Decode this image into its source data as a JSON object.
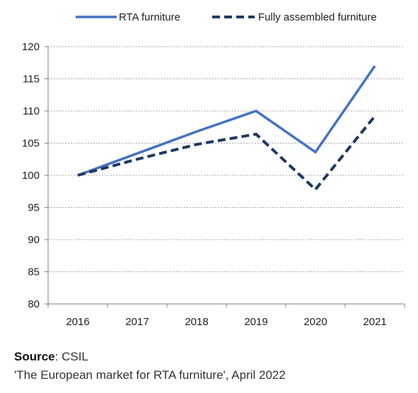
{
  "chart_data": {
    "type": "line",
    "title": "",
    "xlabel": "",
    "ylabel": "",
    "categories": [
      "2016",
      "2017",
      "2018",
      "2019",
      "2020",
      "2021"
    ],
    "ylim": [
      80,
      120
    ],
    "yticks": [
      80,
      85,
      90,
      95,
      100,
      105,
      110,
      115,
      120
    ],
    "grid": true,
    "legend_position": "top",
    "series": [
      {
        "name": "RTA furniture",
        "values": [
          100,
          103.4,
          106.8,
          110,
          103.6,
          117
        ],
        "color": "#4472C4",
        "dash": "solid"
      },
      {
        "name": "Fully assembled furniture",
        "values": [
          100,
          102.5,
          104.8,
          106.4,
          97.8,
          109.2
        ],
        "color": "#1F3864",
        "dash": "dashed"
      }
    ]
  },
  "source": {
    "label": "Source",
    "separator": ": CSIL",
    "citation": "'The European market for RTA furniture', April 2022"
  }
}
